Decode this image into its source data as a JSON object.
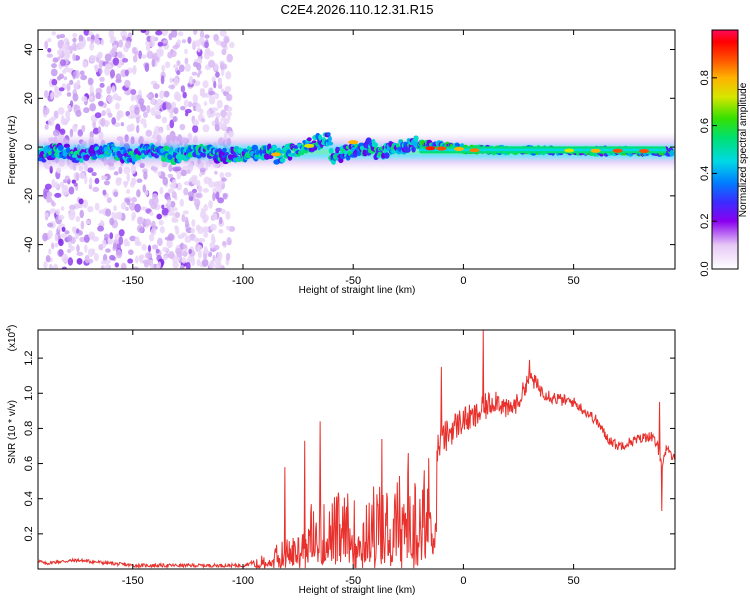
{
  "title": "C2E4.2026.110.12.31.R15",
  "colors": {
    "snr_line": "#e8312c",
    "axis": "#000000"
  },
  "chart_data": [
    {
      "type": "heatmap",
      "name": "spectrogram",
      "xlabel": "Height of straight line (km)",
      "ylabel": "Frequency (Hz)",
      "xlim": [
        -193,
        96
      ],
      "ylim": [
        -50,
        48
      ],
      "xticks": [
        -150,
        -100,
        -50,
        0,
        50
      ],
      "xtick_labels": [
        "-150",
        "-100",
        "-50",
        "0",
        "50"
      ],
      "yticks": [
        -40,
        -20,
        0,
        20,
        40
      ],
      "ytick_labels": [
        "-40",
        "-20",
        "0",
        "20",
        "40"
      ],
      "regions": [
        {
          "desc": "scattered noise",
          "x": [
            -190,
            -105
          ],
          "y": [
            -50,
            48
          ],
          "amplitude": 0.1
        },
        {
          "desc": "tone band",
          "x": [
            -193,
            96
          ],
          "y": [
            -4,
            2
          ],
          "amplitude": 0.35
        },
        {
          "desc": "strong tone",
          "x": [
            -20,
            92
          ],
          "y": [
            -2,
            0
          ],
          "amplitude": 0.9
        }
      ],
      "colorbar": {
        "label": "Normalized spectral amplitude",
        "range": [
          0.0,
          1.0
        ],
        "ticks": [
          0.0,
          0.2,
          0.4,
          0.6,
          0.8
        ],
        "tick_labels": [
          "0.0",
          "0.2",
          "0.4",
          "0.6",
          "0.8"
        ]
      }
    },
    {
      "type": "line",
      "name": "snr",
      "xlabel": "Height of straight line (km)",
      "ylabel": "SNR (10 * v/v)",
      "exponent_label": "(x10",
      "exponent_power": "4",
      "xlim": [
        -193,
        96
      ],
      "ylim": [
        0,
        1.36
      ],
      "xticks": [
        -150,
        -100,
        -50,
        0,
        50
      ],
      "xtick_labels": [
        "-150",
        "-100",
        "-50",
        "0",
        "50"
      ],
      "yticks": [
        0.2,
        0.4,
        0.6,
        0.8,
        1.0,
        1.2
      ],
      "ytick_labels": [
        "0.2",
        "0.4",
        "0.6",
        "0.8",
        "1.0",
        "1.2"
      ],
      "envelope": {
        "x": [
          -193,
          -190,
          -185,
          -175,
          -150,
          -120,
          -100,
          -95,
          -90,
          -80,
          -70,
          -60,
          -50,
          -40,
          -30,
          -20,
          -15,
          -10,
          -5,
          0,
          5,
          10,
          15,
          20,
          25,
          30,
          35,
          40,
          45,
          50,
          55,
          60,
          65,
          70,
          75,
          80,
          85,
          88,
          90,
          92,
          96
        ],
        "y": [
          0.05,
          0.03,
          0.04,
          0.05,
          0.02,
          0.02,
          0.02,
          0.04,
          0.07,
          0.15,
          0.28,
          0.33,
          0.32,
          0.38,
          0.4,
          0.45,
          0.6,
          0.72,
          0.8,
          0.85,
          0.86,
          0.92,
          0.97,
          0.9,
          0.95,
          1.1,
          1.02,
          0.98,
          0.96,
          0.95,
          0.9,
          0.85,
          0.75,
          0.7,
          0.72,
          0.74,
          0.76,
          0.7,
          0.6,
          0.68,
          0.62
        ]
      },
      "noise": {
        "x": [
          -193,
          -95,
          -90,
          -80,
          -70,
          -60,
          -50,
          -40,
          -30,
          -20,
          -15,
          -10,
          0,
          10,
          20,
          30,
          40,
          50,
          60,
          70,
          80,
          90,
          96
        ],
        "y": [
          0.01,
          0.01,
          0.02,
          0.05,
          0.1,
          0.1,
          0.11,
          0.14,
          0.17,
          0.2,
          0.14,
          0.1,
          0.08,
          0.08,
          0.06,
          0.05,
          0.04,
          0.03,
          0.03,
          0.03,
          0.03,
          0.03,
          0.03
        ]
      },
      "spikes": [
        {
          "x": 9,
          "y": 1.36
        },
        {
          "x": 30,
          "y": 1.19
        },
        {
          "x": -10,
          "y": 1.15
        },
        {
          "x": -65,
          "y": 0.84
        },
        {
          "x": -72,
          "y": 0.73
        },
        {
          "x": -81,
          "y": 0.58
        },
        {
          "x": -37,
          "y": 0.74
        },
        {
          "x": -25,
          "y": 0.66
        },
        {
          "x": 89,
          "y": 0.95
        },
        {
          "x": 90,
          "y": 0.33
        }
      ]
    }
  ]
}
